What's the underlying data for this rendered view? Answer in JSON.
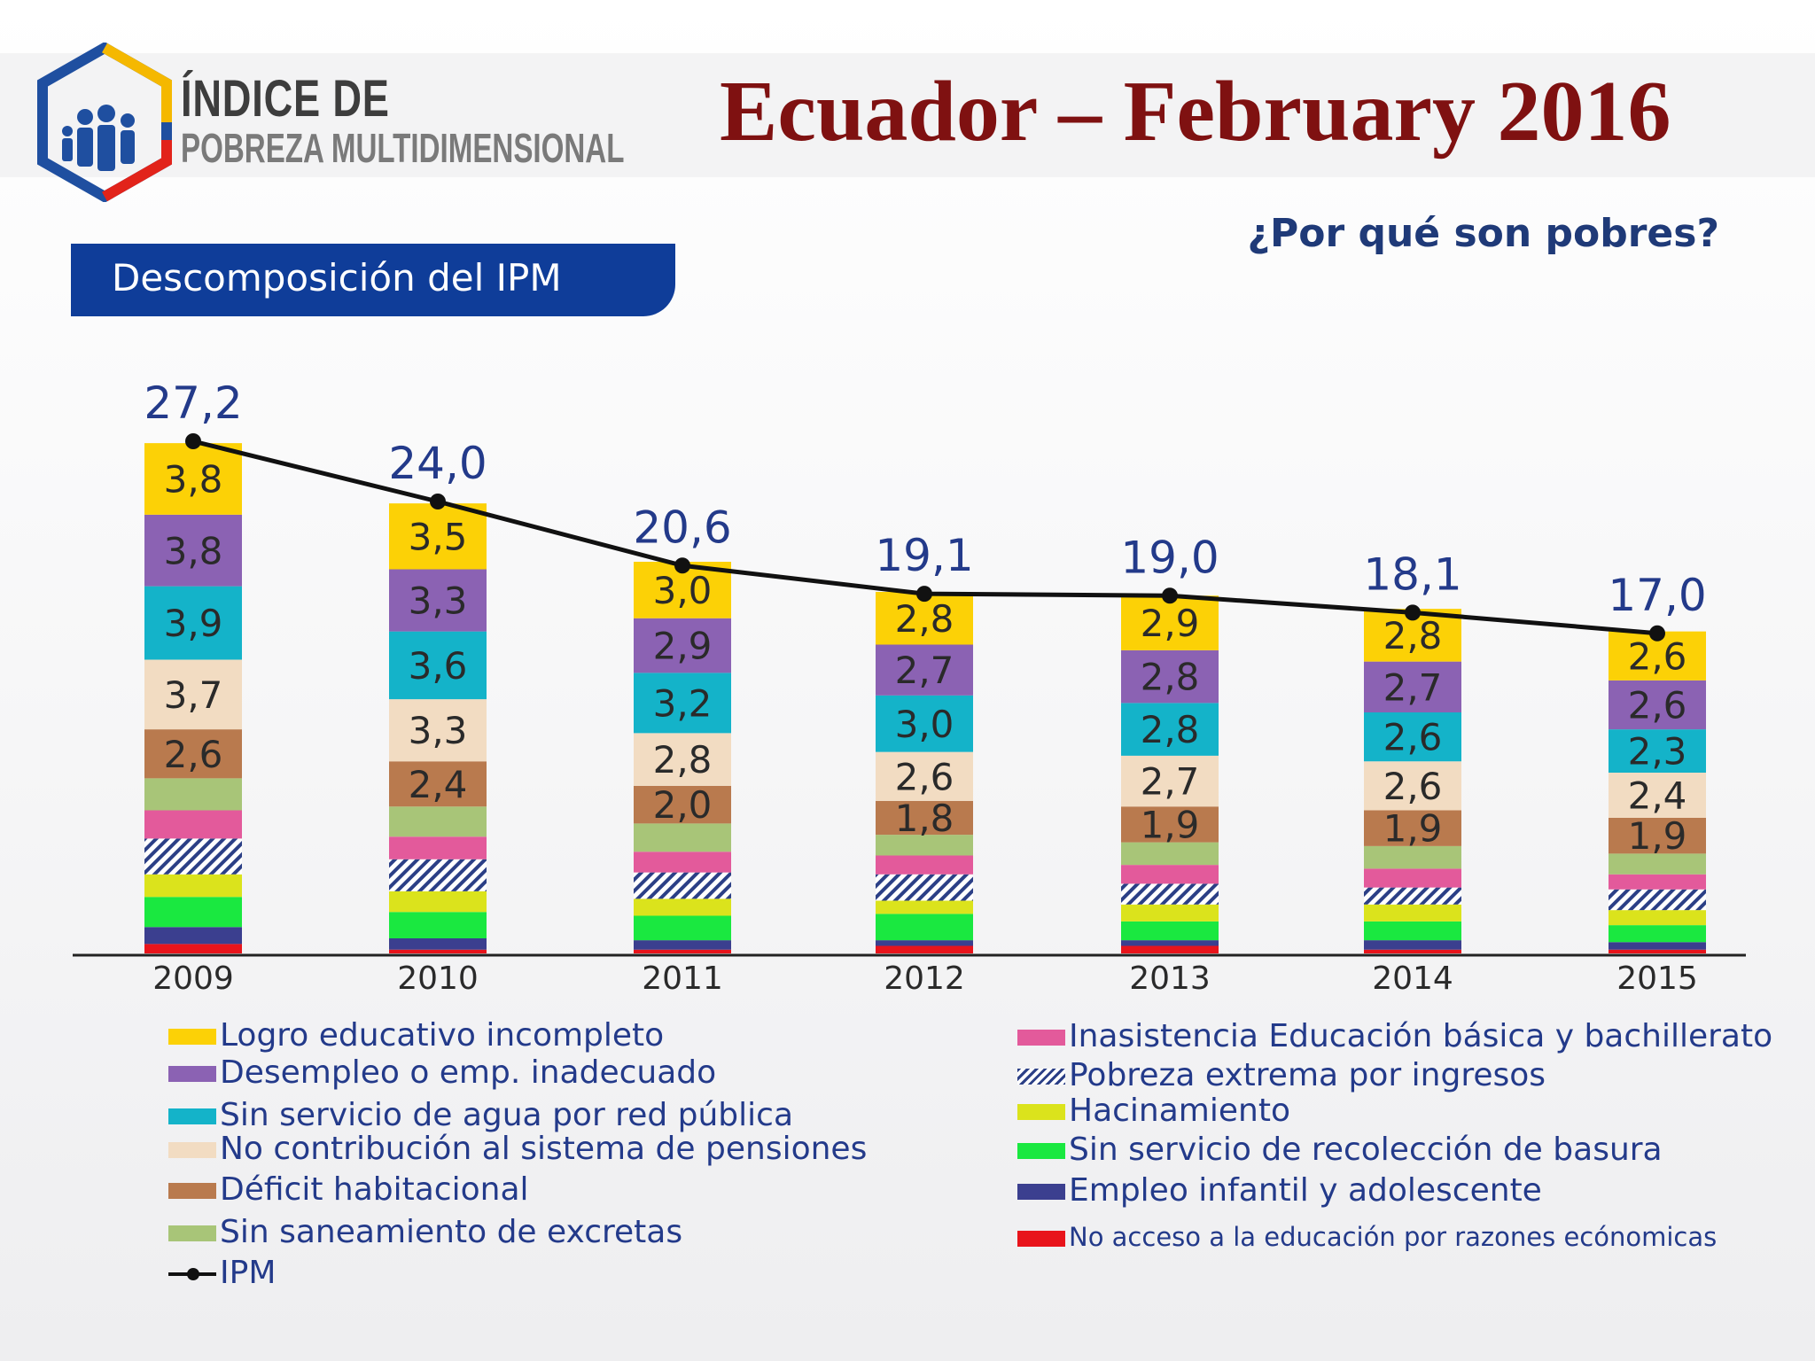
{
  "header": {
    "logo_line1": "ÍNDICE DE",
    "logo_line2": "POBREZA MULTIDIMENSIONAL",
    "title": "Ecuador – February 2016",
    "subtitle": "¿Por qué son pobres?",
    "section_tab": "Descomposición del IPM"
  },
  "colors": {
    "title": "#7f1111",
    "subtitle": "#1f3a78",
    "tab": "#0f3d99",
    "label_total": "#233a8a"
  },
  "chart_data": {
    "type": "bar",
    "stacked": true,
    "categories": [
      "2009",
      "2010",
      "2011",
      "2012",
      "2013",
      "2014",
      "2015"
    ],
    "ylim": [
      0,
      28
    ],
    "series": [
      {
        "name": "No acceso a la educación por razones ecónomicas",
        "color": "#e8141b",
        "values": [
          0.5,
          0.2,
          0.2,
          0.4,
          0.4,
          0.2,
          0.2
        ]
      },
      {
        "name": "Empleo infantil y adolescente",
        "color": "#3b3f8f",
        "values": [
          0.9,
          0.6,
          0.5,
          0.3,
          0.3,
          0.5,
          0.4
        ]
      },
      {
        "name": "Sin servicio de recolección de basura",
        "color": "#1ae840",
        "values": [
          1.6,
          1.4,
          1.3,
          1.4,
          1.0,
          1.0,
          0.9
        ]
      },
      {
        "name": "Hacinamiento",
        "color": "#dbe31c",
        "values": [
          1.2,
          1.1,
          0.9,
          0.7,
          0.9,
          0.9,
          0.8
        ]
      },
      {
        "name": "Pobreza extrema por ingresos",
        "color": "hatch",
        "values": [
          1.9,
          1.7,
          1.4,
          1.4,
          1.1,
          0.9,
          1.1
        ]
      },
      {
        "name": "Inasistencia Educación básica y bachillerato",
        "color": "#e35a9b",
        "values": [
          1.5,
          1.2,
          1.1,
          1.0,
          1.0,
          1.0,
          0.8
        ]
      },
      {
        "name": "Sin saneamiento de excretas",
        "color": "#a8c578",
        "values": [
          1.7,
          1.6,
          1.5,
          1.1,
          1.2,
          1.2,
          1.1
        ]
      },
      {
        "name": "Déficit habitacional",
        "color": "#b97a4e",
        "values": [
          2.6,
          2.4,
          2.0,
          1.8,
          1.9,
          1.9,
          1.9
        ]
      },
      {
        "name": "No contribución al sistema de pensiones",
        "color": "#f2dcc2",
        "values": [
          3.7,
          3.3,
          2.8,
          2.6,
          2.7,
          2.6,
          2.4
        ]
      },
      {
        "name": "Sin servicio de agua por red pública",
        "color": "#14b3c9",
        "values": [
          3.9,
          3.6,
          3.2,
          3.0,
          2.8,
          2.6,
          2.3
        ]
      },
      {
        "name": "Desempleo o emp. inadecuado",
        "color": "#8b62b3",
        "values": [
          3.8,
          3.3,
          2.9,
          2.7,
          2.8,
          2.7,
          2.6
        ]
      },
      {
        "name": "Logro educativo incompleto",
        "color": "#fcd106",
        "values": [
          3.8,
          3.5,
          3.0,
          2.8,
          2.9,
          2.8,
          2.6
        ]
      }
    ],
    "segment_labels": {
      "Logro educativo incompleto": [
        "3,8",
        "3,5",
        "3,0",
        "2,8",
        "2,9",
        "2,8",
        "2,6"
      ],
      "Desempleo o emp. inadecuado": [
        "3,8",
        "3,3",
        "2,9",
        "2,7",
        "2,8",
        "2,7",
        "2,6"
      ],
      "Sin servicio de agua por red pública": [
        "3,9",
        "3,6",
        "3,2",
        "3,0",
        "2,8",
        "2,6",
        "2,3"
      ],
      "No contribución al sistema de pensiones": [
        "3,7",
        "3,3",
        "2,8",
        "2,6",
        "2,7",
        "2,6",
        "2,4"
      ],
      "Déficit habitacional": [
        "2,6",
        "2,4",
        "2,0",
        "1,8",
        "1,9",
        "1,9",
        "1,9"
      ]
    },
    "line": {
      "name": "IPM",
      "color": "#111111",
      "values": [
        27.2,
        24.0,
        20.6,
        19.1,
        19.0,
        18.1,
        17.0
      ],
      "labels": [
        "27,2",
        "24,0",
        "20,6",
        "19,1",
        "19,0",
        "18,1",
        "17,0"
      ]
    },
    "legend": {
      "left": [
        "Logro educativo incompleto",
        "Desempleo o emp. inadecuado",
        "Sin servicio de agua por red pública",
        "No contribución al sistema de pensiones",
        "Déficit habitacional",
        "Sin saneamiento de excretas",
        "IPM"
      ],
      "right": [
        "Inasistencia Educación básica y bachillerato",
        "Pobreza extrema por ingresos",
        "Hacinamiento",
        "Sin servicio de recolección de basura",
        "Empleo infantil y adolescente",
        "No acceso a la educación por razones ecónomicas"
      ]
    }
  }
}
